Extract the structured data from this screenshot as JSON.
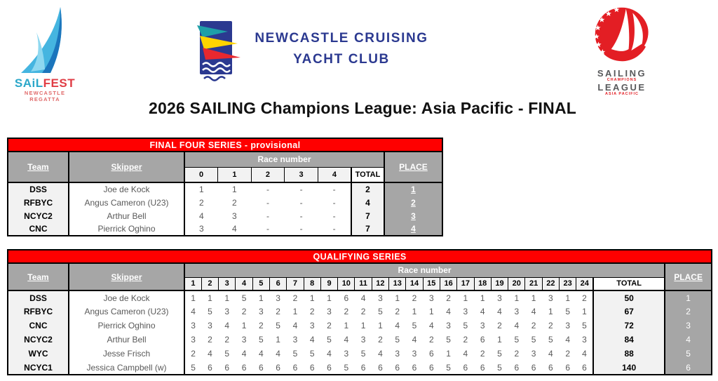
{
  "title": "2026 SAILING Champions League: Asia Pacific - FINAL",
  "colors": {
    "table_header_red": "#fe0000",
    "table_header_gray": "#a6a6a6",
    "cell_light_gray": "#f2f2f2",
    "score_text_gray": "#595959",
    "ncyc_navy": "#2b3990",
    "scl_red": "#e31e24"
  },
  "logos": {
    "sailfest": {
      "word_sail": "SAiL",
      "word_fest": "FEST",
      "subtitle": "NEWCASTLE REGATTA"
    },
    "ncyc": {
      "line1": "NEWCASTLE CRUISING",
      "line2": "YACHT CLUB"
    },
    "scl": {
      "line1": "SAILING",
      "line2": "CHAMPIONS",
      "line3": "LEAGUE",
      "line4": "ASIA PACIFIC"
    }
  },
  "tables": [
    {
      "title": "FINAL FOUR SERIES - provisional",
      "headers": {
        "team": "Team",
        "skipper": "Skipper",
        "race_number": "Race number",
        "total": "TOTAL",
        "place": "PLACE"
      },
      "race_columns": [
        "0",
        "1",
        "2",
        "3",
        "4"
      ],
      "rows": [
        {
          "team": "DSS",
          "skipper": "Joe de Kock",
          "scores": [
            "1",
            "1",
            "-",
            "-",
            "-"
          ],
          "total": "2",
          "place": "1"
        },
        {
          "team": "RFBYC",
          "skipper": "Angus Cameron (U23)",
          "scores": [
            "2",
            "2",
            "-",
            "-",
            "-"
          ],
          "total": "4",
          "place": "2"
        },
        {
          "team": "NCYC2",
          "skipper": "Arthur Bell",
          "scores": [
            "4",
            "3",
            "-",
            "-",
            "-"
          ],
          "total": "7",
          "place": "3"
        },
        {
          "team": "CNC",
          "skipper": "Pierrick Oghino",
          "scores": [
            "3",
            "4",
            "-",
            "-",
            "-"
          ],
          "total": "7",
          "place": "4"
        }
      ]
    },
    {
      "title": "QUALIFYING SERIES",
      "headers": {
        "team": "Team",
        "skipper": "Skipper",
        "race_number": "Race number",
        "total": "TOTAL",
        "place": "PLACE"
      },
      "race_columns": [
        "1",
        "2",
        "3",
        "4",
        "5",
        "6",
        "7",
        "8",
        "9",
        "10",
        "11",
        "12",
        "13",
        "14",
        "15",
        "16",
        "17",
        "18",
        "19",
        "20",
        "21",
        "22",
        "23",
        "24"
      ],
      "rows": [
        {
          "team": "DSS",
          "skipper": "Joe de Kock",
          "scores": [
            "1",
            "1",
            "1",
            "5",
            "1",
            "3",
            "2",
            "1",
            "1",
            "6",
            "4",
            "3",
            "1",
            "2",
            "3",
            "2",
            "1",
            "1",
            "3",
            "1",
            "1",
            "3",
            "1",
            "2"
          ],
          "total": "50",
          "place": "1"
        },
        {
          "team": "RFBYC",
          "skipper": "Angus Cameron (U23)",
          "scores": [
            "4",
            "5",
            "3",
            "2",
            "3",
            "2",
            "1",
            "2",
            "3",
            "2",
            "2",
            "5",
            "2",
            "1",
            "1",
            "4",
            "3",
            "4",
            "4",
            "3",
            "4",
            "1",
            "5",
            "1"
          ],
          "total": "67",
          "place": "2"
        },
        {
          "team": "CNC",
          "skipper": "Pierrick Oghino",
          "scores": [
            "3",
            "3",
            "4",
            "1",
            "2",
            "5",
            "4",
            "3",
            "2",
            "1",
            "1",
            "1",
            "4",
            "5",
            "4",
            "3",
            "5",
            "3",
            "2",
            "4",
            "2",
            "2",
            "3",
            "5"
          ],
          "total": "72",
          "place": "3"
        },
        {
          "team": "NCYC2",
          "skipper": "Arthur Bell",
          "scores": [
            "3",
            "2",
            "2",
            "3",
            "5",
            "1",
            "3",
            "4",
            "5",
            "4",
            "3",
            "2",
            "5",
            "4",
            "2",
            "5",
            "2",
            "6",
            "1",
            "5",
            "5",
            "5",
            "4",
            "3"
          ],
          "total": "84",
          "place": "4"
        },
        {
          "team": "WYC",
          "skipper": "Jesse Frisch",
          "scores": [
            "2",
            "4",
            "5",
            "4",
            "4",
            "4",
            "5",
            "5",
            "4",
            "3",
            "5",
            "4",
            "3",
            "3",
            "6",
            "1",
            "4",
            "2",
            "5",
            "2",
            "3",
            "4",
            "2",
            "4"
          ],
          "total": "88",
          "place": "5"
        },
        {
          "team": "NCYC1",
          "skipper": "Jessica Campbell (w)",
          "scores": [
            "5",
            "6",
            "6",
            "6",
            "6",
            "6",
            "6",
            "6",
            "6",
            "5",
            "6",
            "6",
            "6",
            "6",
            "6",
            "5",
            "6",
            "6",
            "5",
            "6",
            "6",
            "6",
            "6",
            "6"
          ],
          "total": "140",
          "place": "6"
        }
      ]
    }
  ]
}
